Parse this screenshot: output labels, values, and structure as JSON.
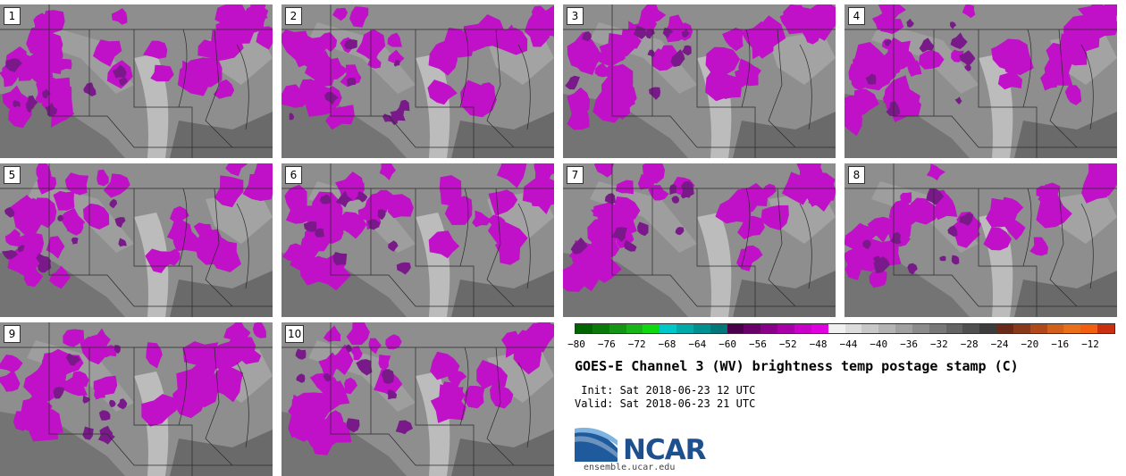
{
  "panels": [
    {
      "label": "1"
    },
    {
      "label": "2"
    },
    {
      "label": "3"
    },
    {
      "label": "4"
    },
    {
      "label": "5"
    },
    {
      "label": "6"
    },
    {
      "label": "7"
    },
    {
      "label": "8"
    },
    {
      "label": "9"
    },
    {
      "label": "10"
    }
  ],
  "colorbar": {
    "ticks": [
      "−80",
      "−76",
      "−72",
      "−68",
      "−64",
      "−60",
      "−56",
      "−52",
      "−48",
      "−44",
      "−40",
      "−36",
      "−32",
      "−28",
      "−24",
      "−20",
      "−16",
      "−12"
    ],
    "colors": [
      "#006400",
      "#0a7a0a",
      "#149614",
      "#18b418",
      "#10d810",
      "#00c8c8",
      "#00aaaa",
      "#009090",
      "#007878",
      "#4a004a",
      "#6a006a",
      "#8a008a",
      "#aa00aa",
      "#c800c8",
      "#e000e0",
      "#f0f0f0",
      "#dcdcdc",
      "#c8c8c8",
      "#b4b4b4",
      "#a0a0a0",
      "#8c8c8c",
      "#787878",
      "#646464",
      "#505050",
      "#3c3c3c",
      "#6a2a1a",
      "#8a3a1a",
      "#b04a1a",
      "#d0601a",
      "#e8701a",
      "#f06010",
      "#c83010"
    ],
    "units": "C"
  },
  "title": "GOES-E Channel 3 (WV) brightness temp postage stamp (C)",
  "init": " Init: Sat 2018-06-23 12 UTC",
  "valid": "Valid: Sat 2018-06-23 21 UTC",
  "logo": {
    "text": "NCAR",
    "url": "ensemble.ucar.edu"
  }
}
